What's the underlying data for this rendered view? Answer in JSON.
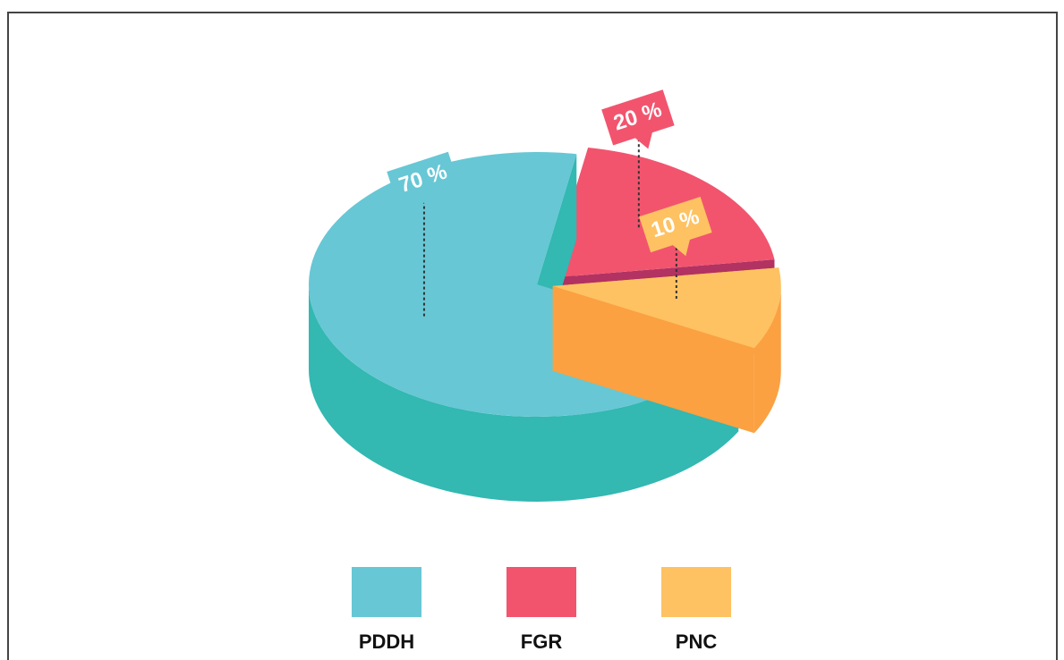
{
  "chart_data": {
    "type": "pie",
    "categories": [
      "PDDH",
      "FGR",
      "PNC"
    ],
    "values": [
      70,
      20,
      10
    ],
    "value_labels": [
      "70 %",
      "20 %",
      "10 %"
    ],
    "colors": [
      "#67c7d5",
      "#f2546e",
      "#fec262"
    ],
    "side_colors": [
      "#33b8b2",
      "#b23262",
      "#fba141"
    ]
  }
}
